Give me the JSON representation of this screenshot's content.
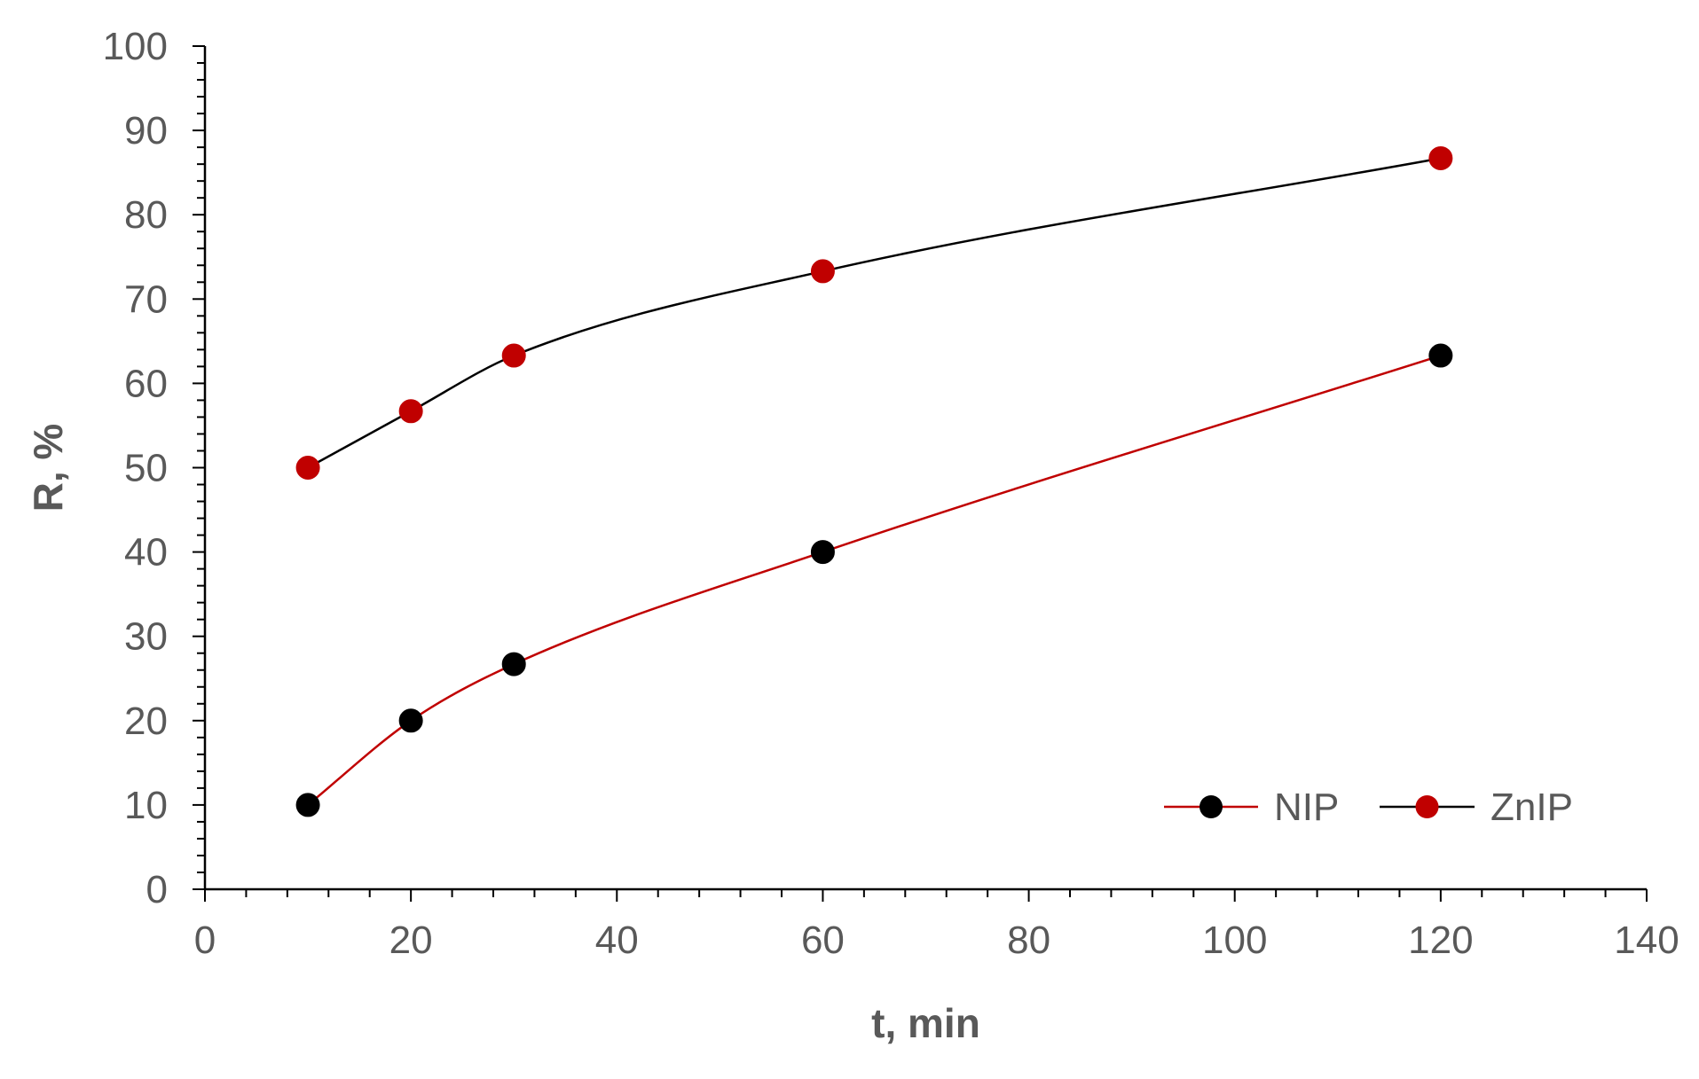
{
  "chart_data": {
    "type": "line",
    "title": "",
    "xlabel": "t, min",
    "ylabel": "R, %",
    "xlim": [
      0,
      140
    ],
    "ylim": [
      0,
      100
    ],
    "x_ticks": [
      0,
      20,
      40,
      60,
      80,
      100,
      120,
      140
    ],
    "y_ticks": [
      0,
      10,
      20,
      30,
      40,
      50,
      60,
      70,
      80,
      90,
      100
    ],
    "x_minor_step": 4,
    "y_minor_step": 2,
    "grid": false,
    "smooth": true,
    "legend_position": "bottom-right",
    "series": [
      {
        "name": "NIP",
        "x": [
          10,
          20,
          30,
          60,
          120
        ],
        "y": [
          10,
          20,
          26.7,
          40,
          63.3
        ],
        "line_color": "#c00000",
        "marker_color": "#000000"
      },
      {
        "name": "ZnIP",
        "x": [
          10,
          20,
          30,
          60,
          120
        ],
        "y": [
          50,
          56.7,
          63.3,
          73.3,
          86.7
        ],
        "line_color": "#000000",
        "marker_color": "#c00000"
      }
    ]
  }
}
